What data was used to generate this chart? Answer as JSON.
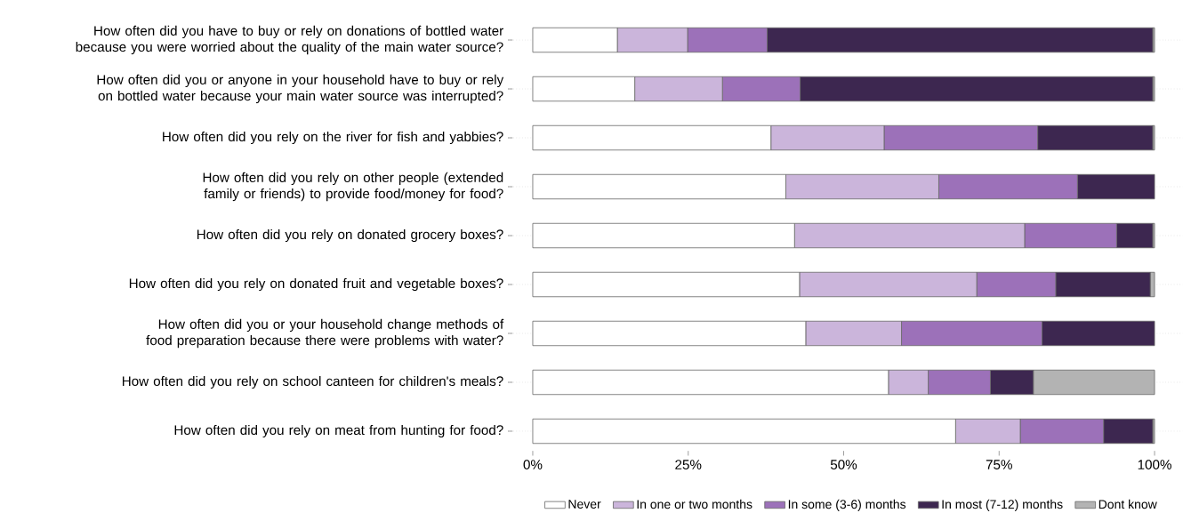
{
  "chart_data": {
    "type": "bar",
    "orientation": "horizontal",
    "stacked": true,
    "categories": [
      "How often did you have to buy or rely on donations of bottled water because you were worried about the quality of the main water source?",
      "How often did you or anyone in your household have to buy or rely on bottled water because your main water source was interrupted?",
      "How often did you rely on the river for fish and yabbies?",
      "How often did you rely on other people (extended family or friends) to provide food/money for food?",
      "How often did you rely on donated grocery boxes?",
      "How often did you rely on donated fruit and vegetable boxes?",
      "How often did you or your household change methods of food preparation because there were problems with water?",
      "How often did you rely on school canteen for children's meals?",
      "How often did you rely on meat from hunting for food?"
    ],
    "series": [
      {
        "name": "Never",
        "color": "#ffffff",
        "values": [
          13.6,
          16.4,
          38.3,
          40.7,
          42.1,
          42.9,
          43.9,
          57.2,
          68.0
        ]
      },
      {
        "name": "In one or two months",
        "color": "#cbb5db",
        "values": [
          11.3,
          14.1,
          18.2,
          24.6,
          37.0,
          28.5,
          15.4,
          6.4,
          10.4
        ]
      },
      {
        "name": "In some (3-6) months",
        "color": "#9c71b9",
        "values": [
          12.8,
          12.5,
          24.7,
          22.3,
          14.8,
          12.7,
          22.6,
          10.0,
          13.4
        ]
      },
      {
        "name": "In most (7-12) months",
        "color": "#3d2750",
        "values": [
          62.0,
          56.7,
          18.5,
          12.4,
          5.8,
          15.2,
          18.1,
          6.9,
          7.9
        ]
      },
      {
        "name": "Dont know",
        "color": "#b3b3b3",
        "values": [
          0.3,
          0.3,
          0.3,
          0.0,
          0.3,
          0.7,
          0.0,
          19.5,
          0.3
        ]
      }
    ],
    "xlim": [
      -4,
      104.5
    ],
    "xticks": [
      {
        "value": 0,
        "label": "0%"
      },
      {
        "value": 25,
        "label": "25%"
      },
      {
        "value": 50,
        "label": "50%"
      },
      {
        "value": 75,
        "label": "75%"
      },
      {
        "value": 100,
        "label": "100%"
      }
    ],
    "grid": "y",
    "legend": "bottom"
  }
}
